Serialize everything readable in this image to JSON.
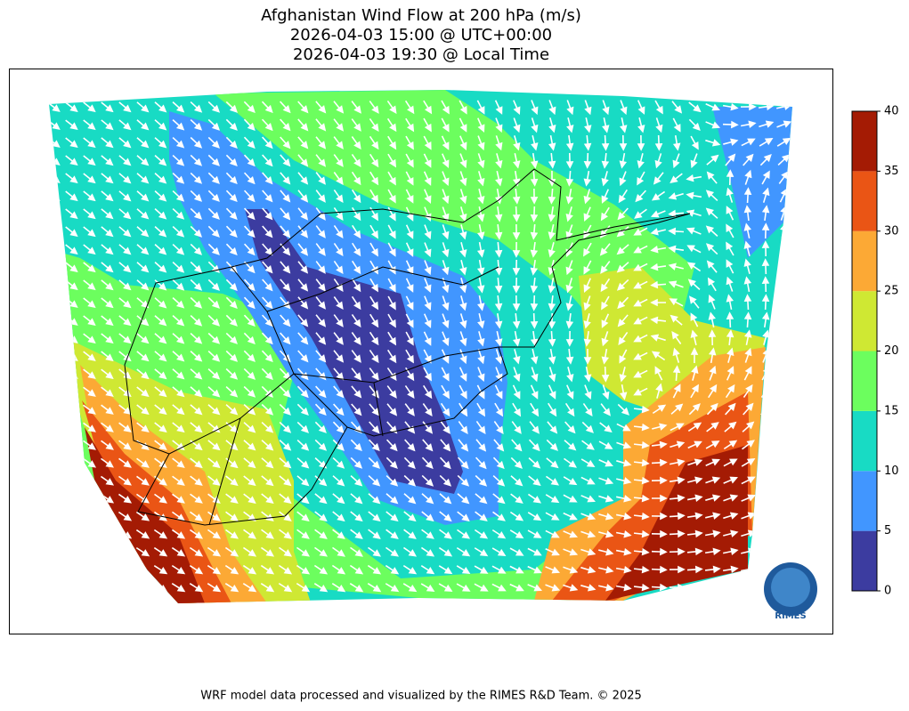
{
  "title": [
    "Afghanistan Wind Flow at 200 hPa (m/s)",
    "2026-04-03 15:00 @ UTC+00:00",
    "2026-04-03 19:30 @ Local Time"
  ],
  "colorbar": {
    "levels": [
      0,
      5,
      10,
      15,
      20,
      25,
      30,
      35,
      40
    ],
    "colors": [
      "#3c3ca0",
      "#4196ff",
      "#18dbc4",
      "#6cfe5e",
      "#cfe833",
      "#fca935",
      "#ea5515",
      "#a41b04"
    ]
  },
  "logo": "RIMES",
  "footer": "WRF model data processed and visualized by the RIMES R&D Team. © 2025"
}
